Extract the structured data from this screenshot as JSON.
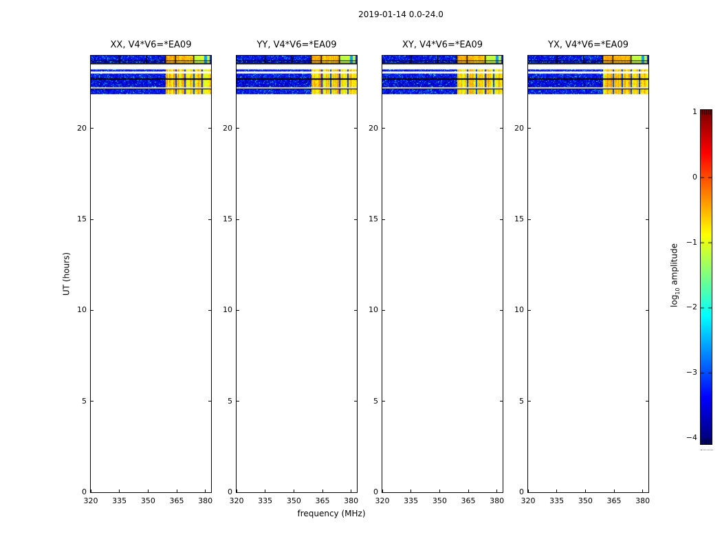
{
  "figure": {
    "title": "2019-01-14 0.0-24.0",
    "background": "#ffffff"
  },
  "axes": {
    "xlabel": "frequency (MHz)",
    "ylabel": "UT (hours)",
    "xtick_labels": [
      "320",
      "335",
      "350",
      "365",
      "380"
    ],
    "ytick_labels": [
      "0",
      "5",
      "10",
      "15",
      "20"
    ]
  },
  "panels": [
    {
      "id": "xx",
      "title": "XX, V4*V6=*EA09"
    },
    {
      "id": "yy",
      "title": "YY, V4*V6=*EA09"
    },
    {
      "id": "xy",
      "title": "XY, V4*V6=*EA09"
    },
    {
      "id": "yx",
      "title": "YX, V4*V6=*EA09"
    }
  ],
  "colorbar": {
    "label_log": "log",
    "label_sub": "10",
    "label_amp": " amplitude",
    "tick_labels": [
      "1",
      "0",
      "−1",
      "−2",
      "−3",
      "−4"
    ],
    "colormap": "jet"
  },
  "chart_data": {
    "type": "heatmap",
    "title": "2019-01-14 0.0-24.0",
    "subplots": [
      "XX, V4*V6=*EA09",
      "YY, V4*V6=*EA09",
      "XY, V4*V6=*EA09",
      "YX, V4*V6=*EA09"
    ],
    "xlabel": "frequency (MHz)",
    "ylabel": "UT (hours)",
    "xlim": [
      320,
      383
    ],
    "ylim": [
      0,
      24
    ],
    "xticks": [
      320,
      335,
      350,
      365,
      380
    ],
    "yticks": [
      0,
      5,
      10,
      15,
      20
    ],
    "colormap": "jet",
    "color_scale": {
      "label": "log10 amplitude",
      "min": -4,
      "max": 1,
      "ticks": [
        1,
        0,
        -1,
        -2,
        -3,
        -4
      ]
    },
    "coverage": "Data present only between UT ~21.9 and 24.0 hours; rest of day is blank white. All four polarization panels show the same pattern.",
    "bands": [
      {
        "ut_start": 23.58,
        "ut_end": 24.0,
        "framed": true,
        "internal_line_ut": 23.75,
        "dividers_mhz": [
          335,
          349,
          359,
          364.3,
          373.8
        ],
        "segment_log_amp": [
          -0.45,
          -0.55,
          -1.15
        ],
        "note": "top strip outlined in black, bright orange/yellow/green segments above 359 MHz"
      },
      {
        "ut_start": 23.12,
        "ut_end": 23.26
      },
      {
        "ut_start": 22.76,
        "ut_end": 23.03,
        "border_bottom": true
      },
      {
        "ut_start": 22.25,
        "ut_end": 22.68
      },
      {
        "ut_start": 21.88,
        "ut_end": 22.16,
        "border_top": true
      }
    ],
    "noise": {
      "log_amp_min": -3.9,
      "log_amp_max": -2.9,
      "speckle_log_amp": -2.1,
      "speckle_prob": 0.05
    },
    "rfi": {
      "from_mhz": 359,
      "to_mhz": 383,
      "log_amp_base": -0.7,
      "log_amp_spread": 0.9,
      "channel_gaps_mhz": [
        364.3,
        369.3,
        373.8,
        378.2
      ],
      "gap_log_amp": -3.3
    }
  }
}
